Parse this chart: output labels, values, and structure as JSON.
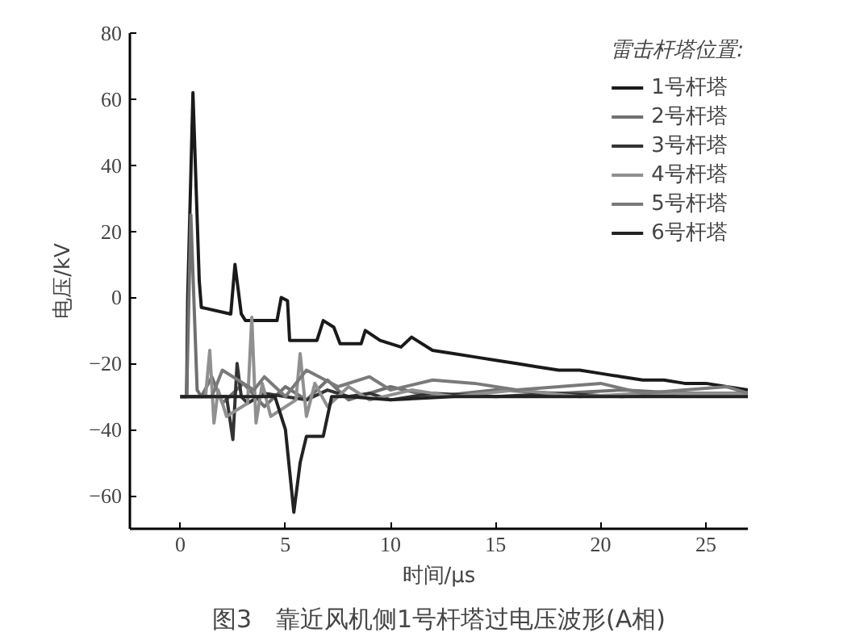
{
  "chart_data": {
    "type": "line",
    "title": "图3　靠近风机侧1号杆塔过电压波形(A相)",
    "xlabel": "时间/μs",
    "ylabel": "电压/kV",
    "legend_title": "雷击杆塔位置:",
    "xlim": [
      -2.4,
      27
    ],
    "ylim": [
      -70,
      80
    ],
    "xticks": [
      0,
      5,
      10,
      15,
      20,
      25
    ],
    "yticks": [
      -60,
      -40,
      -20,
      0,
      20,
      40,
      60,
      80
    ],
    "grid": false,
    "legend": "top right",
    "series": [
      {
        "name": "1号杆塔",
        "color": "#1a1a1a",
        "x": [
          0,
          0.3,
          0.35,
          0.6,
          0.9,
          1.0,
          2.4,
          2.6,
          2.9,
          3.1,
          4.6,
          4.8,
          5.1,
          5.2,
          6.5,
          6.8,
          7.3,
          7.6,
          8.6,
          8.8,
          9.5,
          10.5,
          11,
          12,
          13,
          14,
          15,
          16,
          17,
          18,
          19,
          20,
          21,
          22,
          23,
          24,
          25,
          26,
          27
        ],
        "values": [
          -30,
          -30,
          0,
          62,
          5,
          -3,
          -5,
          10,
          -5,
          -7,
          -7,
          0,
          -1,
          -13,
          -13,
          -7,
          -9,
          -14,
          -14,
          -10,
          -13,
          -15,
          -12,
          -16,
          -17,
          -18,
          -19,
          -20,
          -21,
          -22,
          -22,
          -23,
          -24,
          -25,
          -25,
          -26,
          -26,
          -27,
          -28
        ]
      },
      {
        "name": "2号杆塔",
        "color": "#707070",
        "x": [
          0,
          0.3,
          0.5,
          0.8,
          1.0,
          1.5,
          2,
          3,
          4,
          5,
          6,
          7,
          8,
          10,
          12,
          15,
          18,
          21,
          24,
          27
        ],
        "values": [
          -30,
          -30,
          25,
          -28,
          -30,
          -24,
          -32,
          -26,
          -33,
          -27,
          -31,
          -25,
          -31,
          -27,
          -30,
          -28,
          -29,
          -28,
          -29,
          -29
        ]
      },
      {
        "name": "3号杆塔",
        "color": "#333333",
        "x": [
          0,
          2.2,
          2.5,
          2.7,
          2.9,
          3.2,
          4,
          5,
          6,
          7,
          8,
          9,
          10,
          12,
          15,
          18,
          21,
          24,
          27
        ],
        "values": [
          -30,
          -30,
          -43,
          -20,
          -30,
          -32,
          -29,
          -30,
          -31,
          -28,
          -30,
          -29,
          -31,
          -29,
          -30,
          -29,
          -30,
          -29,
          -29
        ]
      },
      {
        "name": "4号杆塔",
        "color": "#909090",
        "x": [
          0,
          1.2,
          1.4,
          1.6,
          1.8,
          2.2,
          3.2,
          3.4,
          3.6,
          3.9,
          4.3,
          5.5,
          5.7,
          6,
          6.4,
          7,
          8,
          9,
          11,
          13,
          16,
          19,
          22,
          25,
          27
        ],
        "values": [
          -30,
          -30,
          -16,
          -38,
          -28,
          -36,
          -32,
          -6,
          -38,
          -26,
          -36,
          -31,
          -17,
          -36,
          -26,
          -33,
          -27,
          -31,
          -28,
          -30,
          -28,
          -30,
          -29,
          -29,
          -29
        ]
      },
      {
        "name": "5号杆塔",
        "color": "#7a7a7a",
        "x": [
          0,
          1.5,
          2,
          3.5,
          4,
          5,
          6,
          7.5,
          9,
          10,
          12,
          14,
          16,
          18,
          20,
          22,
          24,
          26,
          27
        ],
        "values": [
          -30,
          -30,
          -22,
          -28,
          -24,
          -30,
          -22,
          -27,
          -24,
          -28,
          -25,
          -26,
          -28,
          -27,
          -26,
          -29,
          -28,
          -27,
          -29
        ]
      },
      {
        "name": "6号杆塔",
        "color": "#222222",
        "x": [
          0,
          4.5,
          5,
          5.4,
          5.7,
          6,
          6.8,
          7.2,
          8,
          10,
          13,
          16,
          19,
          22,
          25,
          27
        ],
        "values": [
          -30,
          -30,
          -40,
          -65,
          -50,
          -42,
          -42,
          -30,
          -30,
          -31,
          -30,
          -30,
          -30,
          -30,
          -30,
          -30
        ]
      }
    ]
  }
}
